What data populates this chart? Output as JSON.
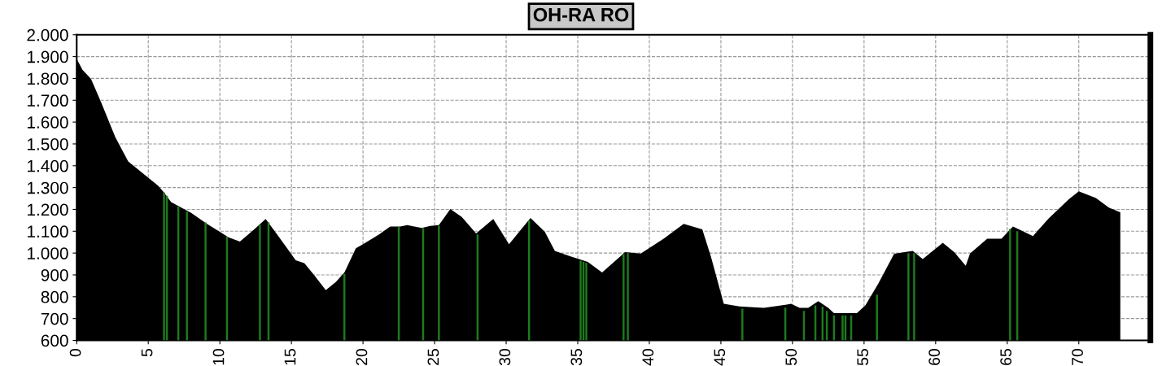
{
  "chart_data": {
    "type": "area",
    "title": "OH-RA RO",
    "xlim": [
      0,
      75
    ],
    "xticks": [
      0,
      5,
      10,
      15,
      20,
      25,
      30,
      35,
      40,
      45,
      50,
      55,
      60,
      65,
      70
    ],
    "ylim": [
      600,
      2000
    ],
    "yticks": [
      {
        "value": 600,
        "label": "600"
      },
      {
        "value": 700,
        "label": "700"
      },
      {
        "value": 800,
        "label": "800"
      },
      {
        "value": 900,
        "label": "900"
      },
      {
        "value": 1000,
        "label": "1.000"
      },
      {
        "value": 1100,
        "label": "1.100"
      },
      {
        "value": 1200,
        "label": "1.200"
      },
      {
        "value": 1300,
        "label": "1.300"
      },
      {
        "value": 1400,
        "label": "1.400"
      },
      {
        "value": 1500,
        "label": "1.500"
      },
      {
        "value": 1600,
        "label": "1.600"
      },
      {
        "value": 1700,
        "label": "1.700"
      },
      {
        "value": 1800,
        "label": "1.800"
      },
      {
        "value": 1900,
        "label": "1.900"
      },
      {
        "value": 2000,
        "label": "2.000"
      }
    ],
    "grid": true,
    "line_style": "dashed",
    "series": [
      {
        "color": "#000000",
        "x": [
          0,
          0.4,
          1.0,
          1.7,
          2.7,
          3.6,
          5.0,
          5.7,
          6.1,
          6.6,
          8.0,
          9.1,
          10.0,
          10.6,
          11.4,
          12.4,
          13.2,
          14.0,
          14.7,
          15.3,
          15.9,
          16.6,
          17.4,
          18.1,
          18.7,
          19.5,
          20.0,
          21.1,
          21.9,
          22.6,
          23.1,
          24.1,
          24.7,
          25.3,
          26.1,
          26.9,
          27.9,
          29.1,
          30.2,
          31.7,
          32.7,
          33.4,
          34.5,
          35.7,
          36.7,
          38.3,
          39.4,
          41.0,
          42.4,
          43.7,
          44.3,
          45.2,
          46.3,
          48.0,
          49.6,
          49.9,
          50.5,
          51.1,
          51.8,
          52.5,
          52.9,
          54.5,
          55.1,
          56.0,
          57.1,
          58.4,
          59.1,
          60.5,
          61.3,
          62.1,
          62.4,
          63.6,
          64.6,
          65.4,
          66.8,
          67.9,
          69.3,
          70.0,
          71.2,
          72.1,
          72.9,
          72.9
        ],
        "values": [
          1890,
          1840,
          1798,
          1692,
          1531,
          1420,
          1345,
          1308,
          1277,
          1233,
          1184,
          1134,
          1097,
          1072,
          1053,
          1109,
          1156,
          1085,
          1022,
          967,
          954,
          898,
          830,
          867,
          911,
          1022,
          1041,
          1084,
          1122,
          1122,
          1128,
          1115,
          1124,
          1128,
          1202,
          1165,
          1090,
          1156,
          1041,
          1161,
          1097,
          1010,
          985,
          960,
          911,
          1004,
          998,
          1066,
          1134,
          1109,
          985,
          768,
          756,
          749,
          764,
          768,
          749,
          749,
          780,
          749,
          725,
          725,
          761,
          861,
          997,
          1010,
          973,
          1047,
          1004,
          942,
          998,
          1066,
          1066,
          1122,
          1078,
          1159,
          1246,
          1283,
          1252,
          1208,
          1187,
          600
        ]
      },
      {
        "type": "bar",
        "color": "#1e7a1e",
        "x": [
          6.1,
          6.3,
          7.1,
          7.7,
          9.0,
          10.5,
          12.8,
          13.4,
          18.7,
          22.5,
          24.2,
          25.3,
          28.0,
          31.6,
          35.2,
          35.4,
          35.6,
          38.2,
          38.5,
          46.5,
          49.5,
          50.8,
          51.6,
          52.1,
          52.4,
          52.9,
          53.5,
          53.7,
          54.1,
          55.9,
          58.1,
          58.5,
          65.2,
          65.7
        ],
        "values": [
          1277,
          1262,
          1215,
          1190,
          1140,
          1075,
          1130,
          1140,
          905,
          1120,
          1115,
          1125,
          1085,
          1150,
          965,
          960,
          955,
          995,
          1000,
          745,
          750,
          735,
          760,
          755,
          735,
          715,
          715,
          715,
          715,
          810,
          1000,
          1000,
          1110,
          1100
        ]
      }
    ]
  }
}
